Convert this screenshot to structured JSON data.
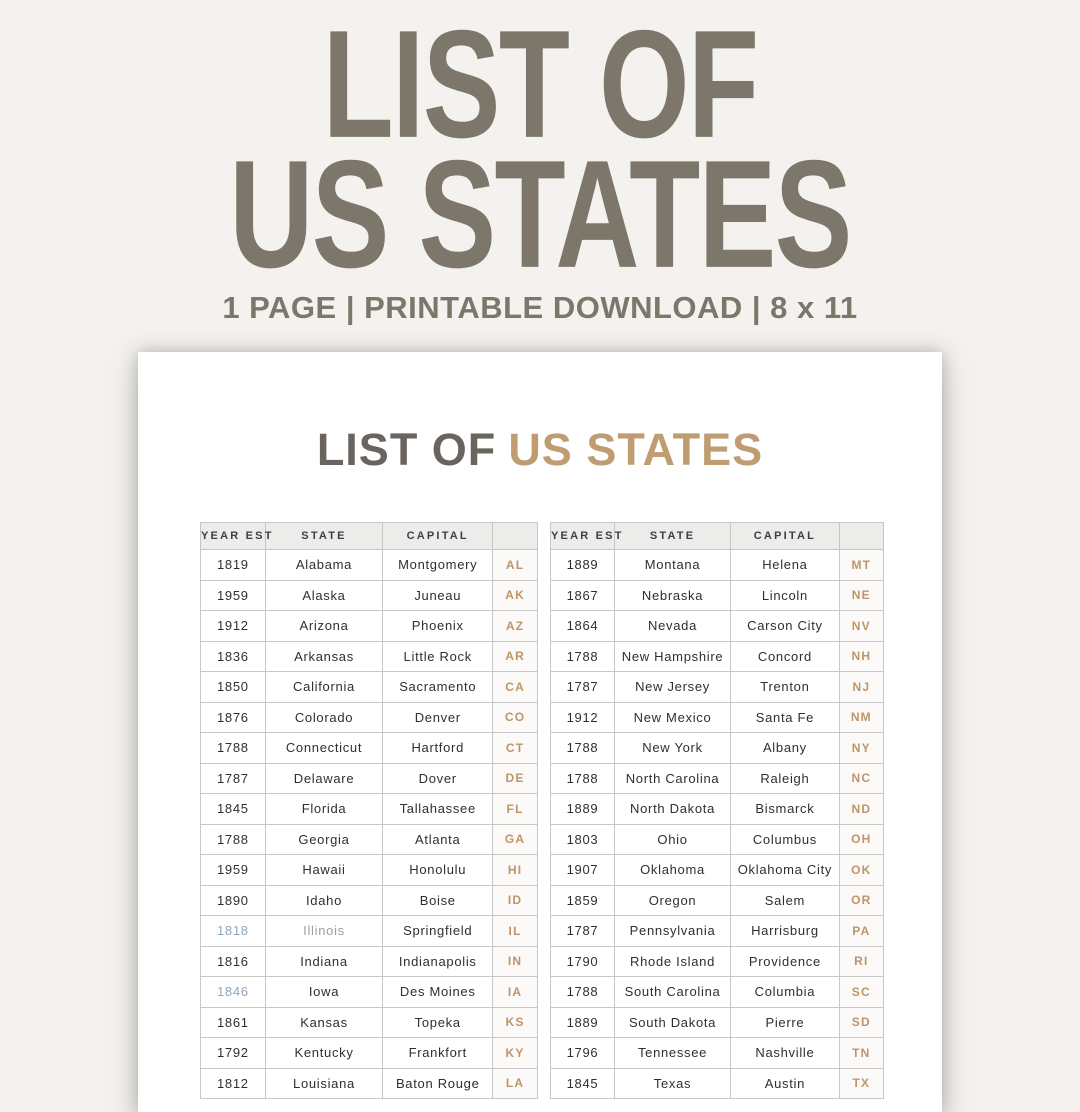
{
  "colors": {
    "background": "#f4f2ef",
    "hero_text": "#7d766a",
    "page_title_gray": "#6a645f",
    "accent_tan": "#bf9c71",
    "abbr_tan": "#bd9569",
    "link_blue_year": "#8ea7c0",
    "muted_state": "#9e9e9e",
    "header_bg": "#ececea",
    "cell_text": "#2f2f2f"
  },
  "hero": {
    "title_line1": "LIST OF",
    "title_line2": "US STATES",
    "subtitle": "1 PAGE | PRINTABLE DOWNLOAD | 8 x 11"
  },
  "page": {
    "title_prefix": "LIST OF",
    "title_accent": "US STATES",
    "columns": [
      "YEAR EST",
      "STATE",
      "CAPITAL",
      ""
    ],
    "tables": [
      {
        "rows": [
          {
            "year": "1819",
            "state": "Alabama",
            "capital": "Montgomery",
            "abbr": "AL"
          },
          {
            "year": "1959",
            "state": "Alaska",
            "capital": "Juneau",
            "abbr": "AK"
          },
          {
            "year": "1912",
            "state": "Arizona",
            "capital": "Phoenix",
            "abbr": "AZ"
          },
          {
            "year": "1836",
            "state": "Arkansas",
            "capital": "Little Rock",
            "abbr": "AR"
          },
          {
            "year": "1850",
            "state": "California",
            "capital": "Sacramento",
            "abbr": "CA"
          },
          {
            "year": "1876",
            "state": "Colorado",
            "capital": "Denver",
            "abbr": "CO"
          },
          {
            "year": "1788",
            "state": "Connecticut",
            "capital": "Hartford",
            "abbr": "CT"
          },
          {
            "year": "1787",
            "state": "Delaware",
            "capital": "Dover",
            "abbr": "DE"
          },
          {
            "year": "1845",
            "state": "Florida",
            "capital": "Tallahassee",
            "abbr": "FL"
          },
          {
            "year": "1788",
            "state": "Georgia",
            "capital": "Atlanta",
            "abbr": "GA"
          },
          {
            "year": "1959",
            "state": "Hawaii",
            "capital": "Honolulu",
            "abbr": "HI"
          },
          {
            "year": "1890",
            "state": "Idaho",
            "capital": "Boise",
            "abbr": "ID"
          },
          {
            "year": "1818",
            "state": "Illinois",
            "capital": "Springfield",
            "abbr": "IL",
            "year_color": "blue",
            "state_color": "muted"
          },
          {
            "year": "1816",
            "state": "Indiana",
            "capital": "Indianapolis",
            "abbr": "IN"
          },
          {
            "year": "1846",
            "state": "Iowa",
            "capital": "Des Moines",
            "abbr": "IA",
            "year_color": "blue"
          },
          {
            "year": "1861",
            "state": "Kansas",
            "capital": "Topeka",
            "abbr": "KS"
          },
          {
            "year": "1792",
            "state": "Kentucky",
            "capital": "Frankfort",
            "abbr": "KY"
          },
          {
            "year": "1812",
            "state": "Louisiana",
            "capital": "Baton Rouge",
            "abbr": "LA"
          }
        ]
      },
      {
        "rows": [
          {
            "year": "1889",
            "state": "Montana",
            "capital": "Helena",
            "abbr": "MT"
          },
          {
            "year": "1867",
            "state": "Nebraska",
            "capital": "Lincoln",
            "abbr": "NE"
          },
          {
            "year": "1864",
            "state": "Nevada",
            "capital": "Carson City",
            "abbr": "NV"
          },
          {
            "year": "1788",
            "state": "New Hampshire",
            "capital": "Concord",
            "abbr": "NH"
          },
          {
            "year": "1787",
            "state": "New Jersey",
            "capital": "Trenton",
            "abbr": "NJ"
          },
          {
            "year": "1912",
            "state": "New Mexico",
            "capital": "Santa Fe",
            "abbr": "NM"
          },
          {
            "year": "1788",
            "state": "New York",
            "capital": "Albany",
            "abbr": "NY"
          },
          {
            "year": "1788",
            "state": "North Carolina",
            "capital": "Raleigh",
            "abbr": "NC"
          },
          {
            "year": "1889",
            "state": "North Dakota",
            "capital": "Bismarck",
            "abbr": "ND"
          },
          {
            "year": "1803",
            "state": "Ohio",
            "capital": "Columbus",
            "abbr": "OH"
          },
          {
            "year": "1907",
            "state": "Oklahoma",
            "capital": "Oklahoma City",
            "abbr": "OK"
          },
          {
            "year": "1859",
            "state": "Oregon",
            "capital": "Salem",
            "abbr": "OR"
          },
          {
            "year": "1787",
            "state": "Pennsylvania",
            "capital": "Harrisburg",
            "abbr": "PA"
          },
          {
            "year": "1790",
            "state": "Rhode Island",
            "capital": "Providence",
            "abbr": "RI"
          },
          {
            "year": "1788",
            "state": "South Carolina",
            "capital": "Columbia",
            "abbr": "SC"
          },
          {
            "year": "1889",
            "state": "South Dakota",
            "capital": "Pierre",
            "abbr": "SD"
          },
          {
            "year": "1796",
            "state": "Tennessee",
            "capital": "Nashville",
            "abbr": "TN"
          },
          {
            "year": "1845",
            "state": "Texas",
            "capital": "Austin",
            "abbr": "TX"
          }
        ]
      }
    ]
  }
}
